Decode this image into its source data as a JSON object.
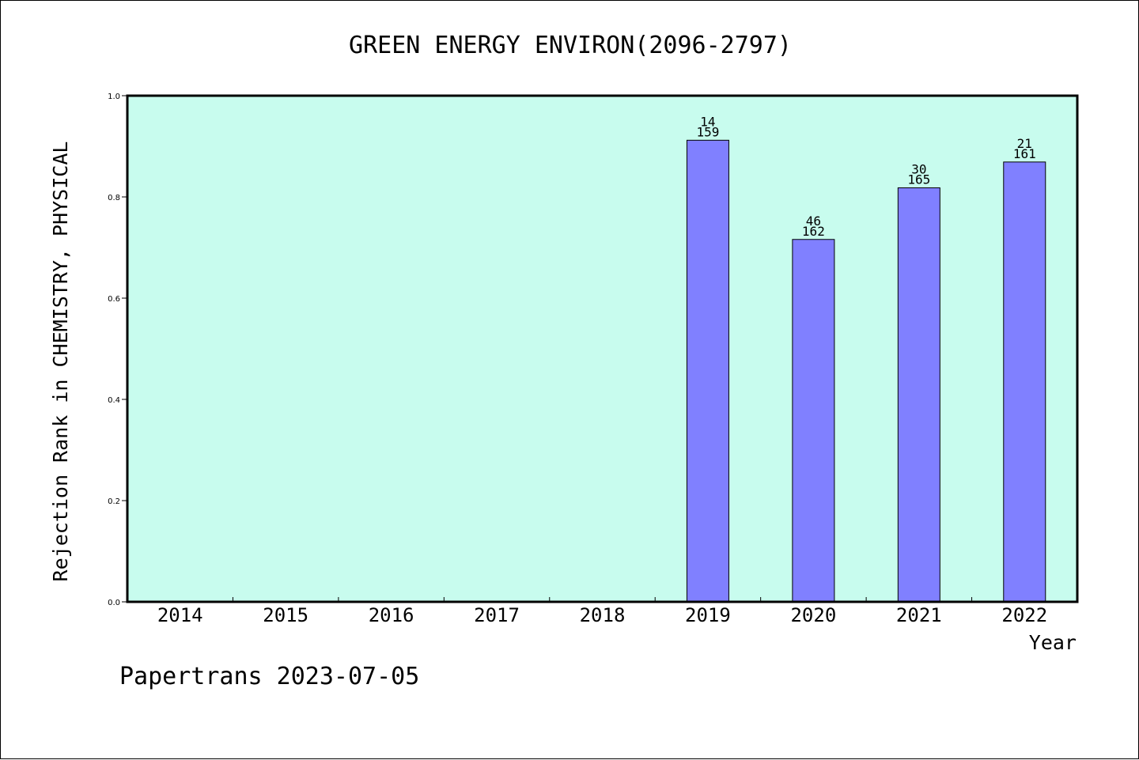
{
  "chart_data": {
    "type": "bar",
    "title": "GREEN ENERGY ENVIRON(2096-2797)",
    "ylabel": "Rejection Rank in CHEMISTRY, PHYSICAL",
    "xlabel": "Year",
    "categories": [
      "2014",
      "2015",
      "2016",
      "2017",
      "2018",
      "2019",
      "2020",
      "2021",
      "2022"
    ],
    "values": [
      null,
      null,
      null,
      null,
      null,
      0.912,
      0.716,
      0.818,
      0.869
    ],
    "bar_labels": [
      null,
      null,
      null,
      null,
      null,
      [
        "14",
        "159"
      ],
      [
        "46",
        "162"
      ],
      [
        "30",
        "165"
      ],
      [
        "21",
        "161"
      ]
    ],
    "ylim": [
      0,
      1.0
    ],
    "yticks": [
      "0.0",
      "0.2",
      "0.4",
      "0.6",
      "0.8",
      "1.0"
    ],
    "grid": false,
    "colors": {
      "plot_background": "#c8fcee",
      "bar_fill": "#8080ff",
      "bar_stroke": "#000000"
    }
  },
  "footer": "Papertrans 2023-07-05"
}
